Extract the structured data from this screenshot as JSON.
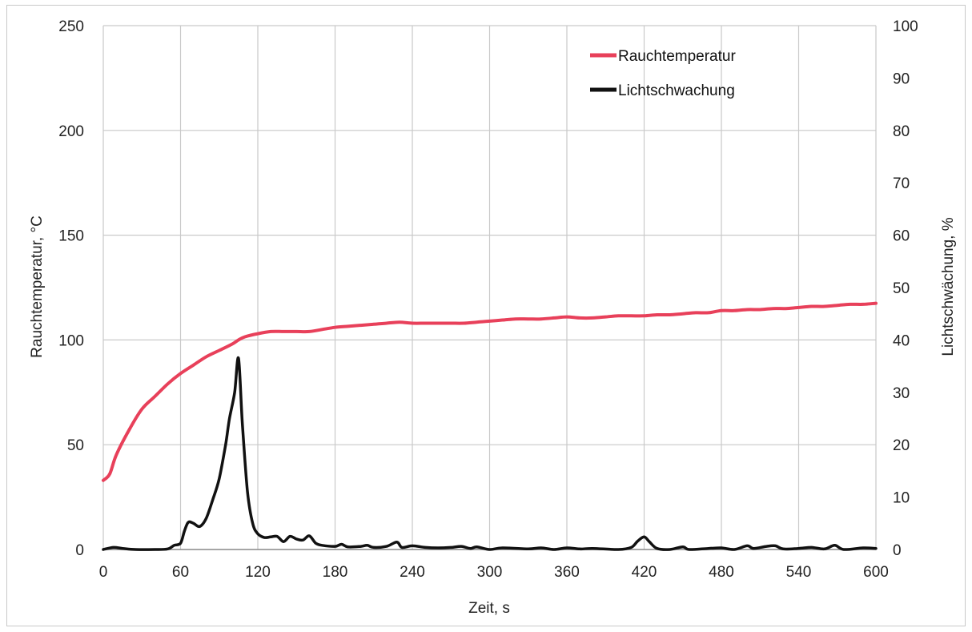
{
  "chart_data": {
    "type": "line",
    "title": "",
    "xlabel": "Zeit, s",
    "ylabel_left": "Rauchtemperatur, °C",
    "ylabel_right": "Lichtschwächung, %",
    "xlim": [
      0,
      600
    ],
    "ylim_left": [
      0,
      250
    ],
    "ylim_right": [
      0,
      100
    ],
    "x_ticks": [
      0,
      60,
      120,
      180,
      240,
      300,
      360,
      420,
      480,
      540,
      600
    ],
    "y_left_ticks": [
      0,
      50,
      100,
      150,
      200,
      250
    ],
    "y_right_ticks": [
      0,
      10,
      20,
      30,
      40,
      50,
      60,
      70,
      80,
      90,
      100
    ],
    "grid": true,
    "legend_position": "top-right",
    "series": [
      {
        "name": "Rauchtemperatur",
        "axis": "left",
        "color": "#e8405a",
        "points": [
          [
            0,
            33
          ],
          [
            5,
            36
          ],
          [
            10,
            45
          ],
          [
            20,
            57
          ],
          [
            30,
            67
          ],
          [
            40,
            73
          ],
          [
            50,
            79
          ],
          [
            60,
            84
          ],
          [
            70,
            88
          ],
          [
            80,
            92
          ],
          [
            90,
            95
          ],
          [
            100,
            98
          ],
          [
            105,
            100
          ],
          [
            110,
            101.5
          ],
          [
            120,
            103
          ],
          [
            130,
            104
          ],
          [
            140,
            104
          ],
          [
            150,
            104
          ],
          [
            160,
            104
          ],
          [
            170,
            105
          ],
          [
            180,
            106
          ],
          [
            190,
            106.5
          ],
          [
            200,
            107
          ],
          [
            210,
            107.5
          ],
          [
            220,
            108
          ],
          [
            230,
            108.5
          ],
          [
            240,
            108
          ],
          [
            250,
            108
          ],
          [
            260,
            108
          ],
          [
            270,
            108
          ],
          [
            280,
            108
          ],
          [
            290,
            108.5
          ],
          [
            300,
            109
          ],
          [
            310,
            109.5
          ],
          [
            320,
            110
          ],
          [
            330,
            110
          ],
          [
            340,
            110
          ],
          [
            350,
            110.5
          ],
          [
            360,
            111
          ],
          [
            370,
            110.5
          ],
          [
            380,
            110.5
          ],
          [
            390,
            111
          ],
          [
            400,
            111.5
          ],
          [
            410,
            111.5
          ],
          [
            420,
            111.5
          ],
          [
            430,
            112
          ],
          [
            440,
            112
          ],
          [
            450,
            112.5
          ],
          [
            460,
            113
          ],
          [
            470,
            113
          ],
          [
            480,
            114
          ],
          [
            490,
            114
          ],
          [
            500,
            114.5
          ],
          [
            510,
            114.5
          ],
          [
            520,
            115
          ],
          [
            530,
            115
          ],
          [
            540,
            115.5
          ],
          [
            550,
            116
          ],
          [
            560,
            116
          ],
          [
            570,
            116.5
          ],
          [
            580,
            117
          ],
          [
            590,
            117
          ],
          [
            600,
            117.5
          ]
        ]
      },
      {
        "name": "Lichtschwachung",
        "axis": "right",
        "color": "#111111",
        "points": [
          [
            0,
            0
          ],
          [
            8,
            0.4
          ],
          [
            15,
            0.2
          ],
          [
            25,
            0
          ],
          [
            40,
            0
          ],
          [
            50,
            0.1
          ],
          [
            55,
            0.8
          ],
          [
            60,
            1.2
          ],
          [
            63,
            3.5
          ],
          [
            66,
            5.2
          ],
          [
            70,
            5.0
          ],
          [
            75,
            4.4
          ],
          [
            80,
            6.0
          ],
          [
            85,
            9.5
          ],
          [
            90,
            13.5
          ],
          [
            95,
            20
          ],
          [
            98,
            25
          ],
          [
            102,
            30
          ],
          [
            105,
            36.5
          ],
          [
            108,
            24
          ],
          [
            112,
            11
          ],
          [
            116,
            5
          ],
          [
            120,
            3
          ],
          [
            125,
            2.3
          ],
          [
            130,
            2.4
          ],
          [
            135,
            2.5
          ],
          [
            140,
            1.5
          ],
          [
            145,
            2.5
          ],
          [
            150,
            2
          ],
          [
            155,
            1.8
          ],
          [
            160,
            2.6
          ],
          [
            165,
            1.2
          ],
          [
            170,
            0.8
          ],
          [
            180,
            0.6
          ],
          [
            185,
            1.0
          ],
          [
            190,
            0.5
          ],
          [
            200,
            0.6
          ],
          [
            205,
            0.8
          ],
          [
            210,
            0.4
          ],
          [
            220,
            0.6
          ],
          [
            228,
            1.4
          ],
          [
            232,
            0.4
          ],
          [
            240,
            0.7
          ],
          [
            250,
            0.4
          ],
          [
            260,
            0.3
          ],
          [
            270,
            0.4
          ],
          [
            278,
            0.6
          ],
          [
            285,
            0.2
          ],
          [
            290,
            0.5
          ],
          [
            300,
            0
          ],
          [
            310,
            0.3
          ],
          [
            330,
            0.1
          ],
          [
            340,
            0.3
          ],
          [
            350,
            0
          ],
          [
            360,
            0.3
          ],
          [
            370,
            0.1
          ],
          [
            380,
            0.2
          ],
          [
            400,
            0
          ],
          [
            410,
            0.4
          ],
          [
            415,
            1.6
          ],
          [
            420,
            2.4
          ],
          [
            424,
            1.5
          ],
          [
            430,
            0.2
          ],
          [
            440,
            0
          ],
          [
            450,
            0.5
          ],
          [
            455,
            0
          ],
          [
            470,
            0.2
          ],
          [
            480,
            0.3
          ],
          [
            490,
            0
          ],
          [
            500,
            0.7
          ],
          [
            505,
            0.2
          ],
          [
            515,
            0.6
          ],
          [
            522,
            0.7
          ],
          [
            528,
            0.1
          ],
          [
            540,
            0.2
          ],
          [
            550,
            0.4
          ],
          [
            560,
            0.1
          ],
          [
            568,
            0.8
          ],
          [
            575,
            0
          ],
          [
            590,
            0.3
          ],
          [
            600,
            0.2
          ]
        ]
      }
    ]
  }
}
